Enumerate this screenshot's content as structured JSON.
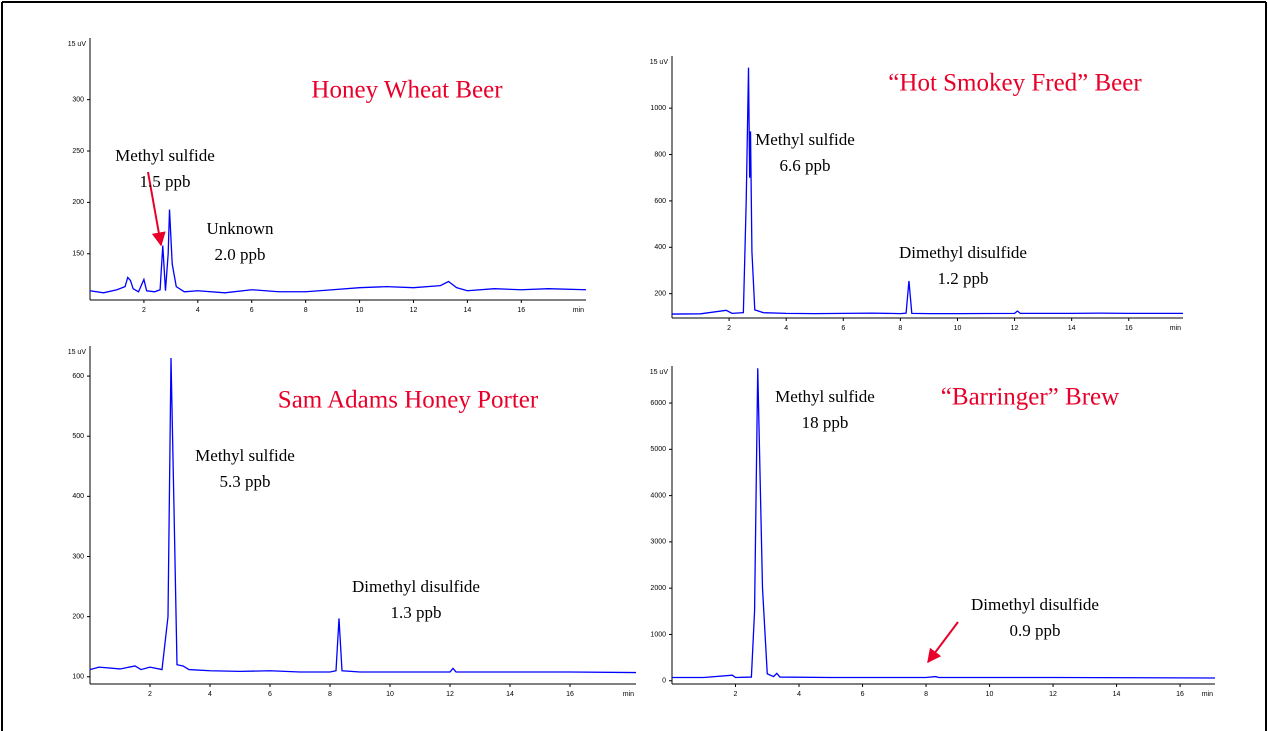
{
  "chart_data": [
    {
      "type": "line",
      "title": "Honey Wheat Beer",
      "y_label": "15 uV",
      "x_label": "min",
      "annotations": [
        "Methyl sulfide",
        "1.5 ppb",
        "Unknown",
        "2.0 ppb"
      ],
      "color": "#0000ff",
      "xlim": [
        0,
        18.4
      ],
      "ylim": [
        105,
        360
      ],
      "xticks": [
        2,
        4,
        6,
        8,
        10,
        12,
        14,
        16
      ],
      "yticks": [
        150,
        200,
        250,
        300
      ],
      "x": [
        0,
        0.5,
        1.0,
        1.3,
        1.4,
        1.5,
        1.6,
        1.8,
        2.0,
        2.1,
        2.4,
        2.6,
        2.7,
        2.8,
        2.9,
        2.95,
        3.05,
        3.2,
        3.5,
        4,
        5,
        6,
        7,
        8,
        9,
        10,
        11,
        12,
        13,
        13.3,
        13.6,
        14,
        15,
        16,
        17,
        18.4
      ],
      "values": [
        114,
        112,
        115,
        118,
        127,
        124,
        116,
        113,
        125,
        114,
        113,
        115,
        158,
        114,
        150,
        193,
        140,
        118,
        113,
        114,
        112,
        115,
        113,
        113,
        115,
        117,
        118,
        117,
        119,
        123,
        117,
        114,
        116,
        115,
        116,
        115
      ]
    },
    {
      "type": "line",
      "title": "“Hot Smokey Fred” Beer",
      "y_label": "15 uV",
      "x_label": "min",
      "annotations": [
        "Methyl sulfide",
        "6.6 ppb",
        "Dimethyl disulfide",
        "1.2 ppb"
      ],
      "color": "#0000ff",
      "xlim": [
        0,
        17.9
      ],
      "ylim": [
        95,
        1225
      ],
      "xticks": [
        2,
        4,
        6,
        8,
        10,
        12,
        14,
        16
      ],
      "yticks": [
        200,
        400,
        600,
        800,
        1000
      ],
      "x": [
        0,
        1,
        1.9,
        2.1,
        2.5,
        2.6,
        2.68,
        2.72,
        2.75,
        2.8,
        2.9,
        3.2,
        4,
        5,
        6,
        7,
        8,
        8.2,
        8.3,
        8.4,
        9,
        10,
        12,
        12.1,
        12.2,
        14,
        15,
        16,
        17.9
      ],
      "values": [
        112,
        113,
        128,
        115,
        118,
        600,
        1175,
        700,
        900,
        380,
        130,
        118,
        115,
        114,
        115,
        116,
        114,
        116,
        255,
        115,
        114,
        114,
        115,
        125,
        115,
        115,
        116,
        115,
        115
      ]
    },
    {
      "type": "line",
      "title": "Sam Adams Honey Porter",
      "y_label": "15 uV",
      "x_label": "min",
      "annotations": [
        "Methyl sulfide",
        "5.3 ppb",
        "Dimethyl disulfide",
        "1.3 ppb"
      ],
      "color": "#0000ff",
      "xlim": [
        0,
        18.2
      ],
      "ylim": [
        88,
        650
      ],
      "xticks": [
        2,
        4,
        6,
        8,
        10,
        12,
        14,
        16
      ],
      "yticks": [
        100,
        200,
        300,
        400,
        500,
        600
      ],
      "x": [
        0,
        0.3,
        1,
        1.5,
        1.7,
        2.0,
        2.4,
        2.6,
        2.7,
        2.8,
        2.9,
        3.1,
        3.3,
        4,
        5,
        6,
        7,
        8,
        8.2,
        8.3,
        8.4,
        9,
        10,
        12,
        12.1,
        12.2,
        14,
        16,
        18.2
      ],
      "values": [
        112,
        116,
        113,
        118,
        112,
        116,
        112,
        200,
        630,
        380,
        120,
        118,
        112,
        110,
        109,
        110,
        108,
        108,
        110,
        197,
        110,
        108,
        108,
        108,
        114,
        108,
        108,
        108,
        107
      ]
    },
    {
      "type": "line",
      "title": "“Barringer” Brew",
      "y_label": "15 uV",
      "x_label": "min",
      "annotations": [
        "Methyl sulfide",
        "18 ppb",
        "Dimethyl disulfide",
        "0.9 ppb"
      ],
      "color": "#0000ff",
      "xlim": [
        0,
        17.1
      ],
      "ylim": [
        -70,
        6800
      ],
      "xticks": [
        2,
        4,
        6,
        8,
        10,
        12,
        14,
        16
      ],
      "yticks": [
        0,
        1000,
        2000,
        3000,
        4000,
        5000,
        6000
      ],
      "x": [
        0,
        1,
        1.9,
        2.0,
        2.5,
        2.6,
        2.7,
        2.85,
        3.0,
        3.2,
        3.3,
        3.4,
        5,
        8,
        8.3,
        8.4,
        12,
        17.1
      ],
      "values": [
        70,
        70,
        120,
        70,
        80,
        1500,
        6750,
        2000,
        150,
        90,
        160,
        80,
        70,
        70,
        90,
        70,
        70,
        60
      ]
    }
  ]
}
